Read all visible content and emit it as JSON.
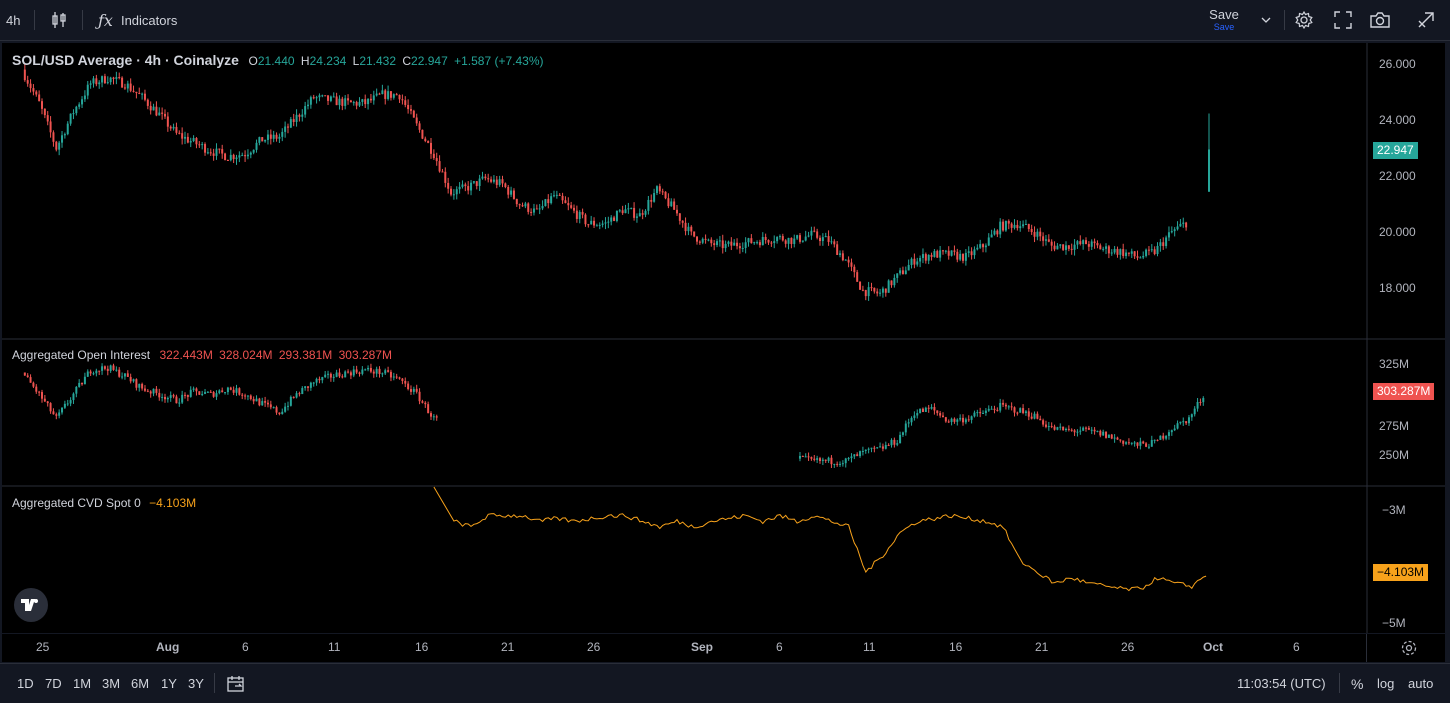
{
  "toolbar": {
    "interval": "4h",
    "indicators_label": "Indicators",
    "save_label": "Save",
    "save_sub": "Save"
  },
  "main_pane": {
    "symbol": "SOL/USD Average · 4h · Coinalyze",
    "o_label": "O",
    "o_value": "21.440",
    "h_label": "H",
    "h_value": "24.234",
    "l_label": "L",
    "l_value": "21.432",
    "c_label": "C",
    "c_value": "22.947",
    "change": "+1.587 (+7.43%)",
    "price_badge": "22.947",
    "yticks": [
      "26.000",
      "24.000",
      "22.000",
      "20.000",
      "18.000"
    ]
  },
  "oi_pane": {
    "title": "Aggregated Open Interest",
    "values": [
      "322.443M",
      "328.024M",
      "293.381M",
      "303.287M"
    ],
    "badge": "303.287M",
    "yticks": [
      "325M",
      "275M",
      "250M"
    ]
  },
  "cvd_pane": {
    "title": "Aggregated CVD Spot 0",
    "value": "−4.103M",
    "badge": "−4.103M",
    "yticks": [
      "−3M",
      "−5M"
    ]
  },
  "xaxis": {
    "ticks": [
      "25",
      "Aug",
      "6",
      "11",
      "16",
      "21",
      "26",
      "Sep",
      "6",
      "11",
      "16",
      "21",
      "26",
      "Oct",
      "6"
    ]
  },
  "bottombar": {
    "ranges": [
      "1D",
      "7D",
      "1M",
      "3M",
      "6M",
      "1Y",
      "3Y"
    ],
    "time": "11:03:54 (UTC)",
    "percent": "%",
    "log": "log",
    "auto": "auto"
  },
  "colors": {
    "up": "#26a69a",
    "down": "#ef5350",
    "cvd": "#f7a21b",
    "background": "#000000",
    "panel": "#131722"
  },
  "chart_data": {
    "type": "candlestick",
    "title": "SOL/USD Average · 4h · Coinalyze",
    "price_path": [
      [
        "Jul 24",
        25.8
      ],
      [
        "Jul 25",
        24.6
      ],
      [
        "Jul 26",
        23.0
      ],
      [
        "Jul 27",
        24.3
      ],
      [
        "Jul 28",
        25.3
      ],
      [
        "Jul 29",
        25.5
      ],
      [
        "Jul 30",
        25.3
      ],
      [
        "Jul 31",
        24.8
      ],
      [
        "Aug 1",
        24.2
      ],
      [
        "Aug 2",
        23.5
      ],
      [
        "Aug 3",
        23.2
      ],
      [
        "Aug 4",
        22.9
      ],
      [
        "Aug 5",
        22.7
      ],
      [
        "Aug 6",
        22.8
      ],
      [
        "Aug 7",
        23.3
      ],
      [
        "Aug 8",
        23.4
      ],
      [
        "Aug 9",
        24.1
      ],
      [
        "Aug 10",
        24.8
      ],
      [
        "Aug 11",
        24.7
      ],
      [
        "Aug 12",
        24.6
      ],
      [
        "Aug 13",
        24.6
      ],
      [
        "Aug 14",
        24.9
      ],
      [
        "Aug 15",
        24.9
      ],
      [
        "Aug 16",
        23.8
      ],
      [
        "Aug 17",
        22.8
      ],
      [
        "Aug 18",
        21.4
      ],
      [
        "Aug 19",
        21.6
      ],
      [
        "Aug 20",
        21.9
      ],
      [
        "Aug 21",
        21.7
      ],
      [
        "Aug 22",
        21.0
      ],
      [
        "Aug 23",
        20.7
      ],
      [
        "Aug 24",
        21.3
      ],
      [
        "Aug 25",
        20.8
      ],
      [
        "Aug 26",
        20.3
      ],
      [
        "Aug 27",
        20.3
      ],
      [
        "Aug 28",
        20.8
      ],
      [
        "Aug 29",
        20.6
      ],
      [
        "Aug 30",
        21.5
      ],
      [
        "Aug 31",
        20.8
      ],
      [
        "Sep 1",
        19.9
      ],
      [
        "Sep 2",
        19.6
      ],
      [
        "Sep 3",
        19.5
      ],
      [
        "Sep 4",
        19.6
      ],
      [
        "Sep 5",
        19.7
      ],
      [
        "Sep 6",
        19.8
      ],
      [
        "Sep 7",
        19.7
      ],
      [
        "Sep 8",
        19.9
      ],
      [
        "Sep 9",
        19.7
      ],
      [
        "Sep 10",
        19.0
      ],
      [
        "Sep 11",
        17.9
      ],
      [
        "Sep 12",
        17.8
      ],
      [
        "Sep 13",
        18.4
      ],
      [
        "Sep 14",
        19.0
      ],
      [
        "Sep 15",
        19.2
      ],
      [
        "Sep 16",
        19.2
      ],
      [
        "Sep 17",
        19.1
      ],
      [
        "Sep 18",
        19.5
      ],
      [
        "Sep 19",
        20.2
      ],
      [
        "Sep 20",
        20.3
      ],
      [
        "Sep 21",
        20.0
      ],
      [
        "Sep 22",
        19.5
      ],
      [
        "Sep 23",
        19.5
      ],
      [
        "Sep 24",
        19.6
      ],
      [
        "Sep 25",
        19.4
      ],
      [
        "Sep 26",
        19.3
      ],
      [
        "Sep 27",
        19.1
      ],
      [
        "Sep 28",
        19.3
      ],
      [
        "Sep 29",
        20.0
      ],
      [
        "Sep 30",
        20.4
      ],
      [
        "Oct 1",
        22.9
      ]
    ],
    "oi_path_M": [
      [
        "Jul 24",
        318
      ],
      [
        "Jul 25",
        300
      ],
      [
        "Jul 26",
        280
      ],
      [
        "Jul 27",
        300
      ],
      [
        "Jul 28",
        320
      ],
      [
        "Jul 29",
        322
      ],
      [
        "Jul 30",
        315
      ],
      [
        "Jul 31",
        305
      ],
      [
        "Aug 1",
        300
      ],
      [
        "Aug 2",
        295
      ],
      [
        "Aug 3",
        302
      ],
      [
        "Aug 4",
        300
      ],
      [
        "Aug 5",
        305
      ],
      [
        "Aug 6",
        300
      ],
      [
        "Aug 7",
        292
      ],
      [
        "Aug 8",
        285
      ],
      [
        "Aug 9",
        300
      ],
      [
        "Aug 10",
        310
      ],
      [
        "Aug 11",
        315
      ],
      [
        "Aug 12",
        318
      ],
      [
        "Aug 13",
        320
      ],
      [
        "Aug 14",
        318
      ],
      [
        "Aug 15",
        312
      ],
      [
        "Aug 16",
        300
      ],
      [
        "Aug 17",
        280
      ],
      [
        "Sep 7",
        248
      ],
      [
        "Sep 8",
        245
      ],
      [
        "Sep 10",
        245
      ],
      [
        "Sep 11",
        252
      ],
      [
        "Sep 12",
        255
      ],
      [
        "Sep 13",
        262
      ],
      [
        "Sep 14",
        285
      ],
      [
        "Sep 15",
        288
      ],
      [
        "Sep 16",
        278
      ],
      [
        "Sep 17",
        280
      ],
      [
        "Sep 18",
        285
      ],
      [
        "Sep 19",
        290
      ],
      [
        "Sep 20",
        287
      ],
      [
        "Sep 21",
        282
      ],
      [
        "Sep 22",
        272
      ],
      [
        "Sep 23",
        270
      ],
      [
        "Sep 24",
        270
      ],
      [
        "Sep 25",
        267
      ],
      [
        "Sep 26",
        262
      ],
      [
        "Sep 27",
        258
      ],
      [
        "Sep 28",
        260
      ],
      [
        "Sep 29",
        272
      ],
      [
        "Sep 30",
        280
      ],
      [
        "Oct 1",
        303
      ]
    ],
    "cvd_path_M": [
      [
        "Aug 18",
        -3.2
      ],
      [
        "Aug 19",
        -3.3
      ],
      [
        "Aug 20",
        -3.1
      ],
      [
        "Aug 21",
        -3.1
      ],
      [
        "Aug 22",
        -3.1
      ],
      [
        "Aug 23",
        -3.2
      ],
      [
        "Aug 24",
        -3.15
      ],
      [
        "Aug 25",
        -3.2
      ],
      [
        "Aug 26",
        -3.15
      ],
      [
        "Aug 27",
        -3.1
      ],
      [
        "Aug 28",
        -3.1
      ],
      [
        "Aug 29",
        -3.2
      ],
      [
        "Aug 30",
        -3.3
      ],
      [
        "Aug 31",
        -3.2
      ],
      [
        "Sep 1",
        -3.3
      ],
      [
        "Sep 2",
        -3.2
      ],
      [
        "Sep 3",
        -3.15
      ],
      [
        "Sep 4",
        -3.1
      ],
      [
        "Sep 5",
        -3.2
      ],
      [
        "Sep 6",
        -3.1
      ],
      [
        "Sep 7",
        -3.2
      ],
      [
        "Sep 8",
        -3.1
      ],
      [
        "Sep 9",
        -3.2
      ],
      [
        "Sep 10",
        -3.3
      ],
      [
        "Sep 11",
        -4.1
      ],
      [
        "Sep 12",
        -3.8
      ],
      [
        "Sep 13",
        -3.4
      ],
      [
        "Sep 14",
        -3.2
      ],
      [
        "Sep 15",
        -3.15
      ],
      [
        "Sep 16",
        -3.1
      ],
      [
        "Sep 17",
        -3.15
      ],
      [
        "Sep 18",
        -3.2
      ],
      [
        "Sep 19",
        -3.3
      ],
      [
        "Sep 20",
        -3.9
      ],
      [
        "Sep 21",
        -4.1
      ],
      [
        "Sep 22",
        -4.3
      ],
      [
        "Sep 23",
        -4.2
      ],
      [
        "Sep 24",
        -4.3
      ],
      [
        "Sep 25",
        -4.35
      ],
      [
        "Sep 26",
        -4.4
      ],
      [
        "Sep 27",
        -4.4
      ],
      [
        "Sep 28",
        -4.2
      ],
      [
        "Sep 29",
        -4.3
      ],
      [
        "Sep 30",
        -4.35
      ],
      [
        "Oct 1",
        -4.1
      ]
    ]
  }
}
